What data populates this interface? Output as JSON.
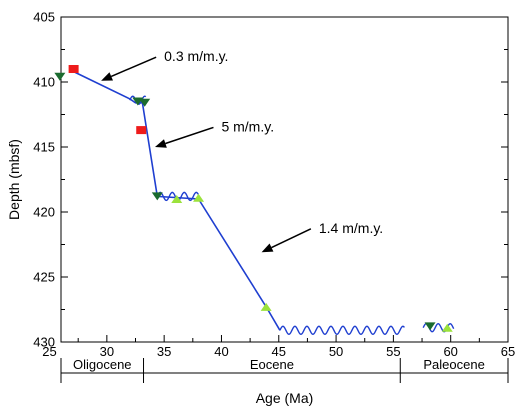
{
  "chart_data": {
    "type": "scatter",
    "xlabel": "Age (Ma)",
    "ylabel": "Depth (mbsf)",
    "xlim": [
      26,
      65
    ],
    "ylim": [
      405,
      430
    ],
    "y_inverted": true,
    "x_ticks": [
      25,
      30,
      35,
      40,
      45,
      50,
      55,
      60,
      65
    ],
    "y_ticks": [
      405,
      410,
      415,
      420,
      425,
      430
    ],
    "grid": false,
    "epochs": [
      {
        "name": "Oligocene",
        "start": 26,
        "end": 33.2
      },
      {
        "name": "Eocene",
        "start": 33.2,
        "end": 55.6
      },
      {
        "name": "Paleocene",
        "start": 55.6,
        "end": 65
      }
    ],
    "age_model_line": {
      "color": "#1f3fd0",
      "points": [
        [
          27.1,
          409.2
        ],
        [
          32,
          411.3
        ],
        [
          32.5,
          411.6
        ],
        [
          33.1,
          411.6
        ],
        [
          34.4,
          418.8
        ],
        [
          38,
          419.0
        ],
        [
          43.9,
          427.3
        ],
        [
          45.1,
          429.1
        ]
      ]
    },
    "hiatus_segments": [
      {
        "from": 32.0,
        "to": 33.4,
        "depth": 411.4
      },
      {
        "from": 34.4,
        "to": 38.0,
        "depth": 418.8
      },
      {
        "from": 45.1,
        "to": 56.0,
        "depth": 429.1
      },
      {
        "from": 57.6,
        "to": 60.3,
        "depth": 428.9
      }
    ],
    "series": [
      {
        "marker": "square",
        "color": "#ee1b1b",
        "points": [
          [
            27.1,
            409.0
          ],
          [
            33.0,
            413.7
          ]
        ]
      },
      {
        "marker": "triangle-down",
        "color": "#1b6b2f",
        "points": [
          [
            25.9,
            409.6
          ],
          [
            32.7,
            411.5
          ],
          [
            33.3,
            411.6
          ],
          [
            34.4,
            418.8
          ],
          [
            58.2,
            428.8
          ]
        ]
      },
      {
        "marker": "triangle-up",
        "color": "#9be23c",
        "points": [
          [
            36.1,
            419.0
          ],
          [
            38.0,
            418.9
          ],
          [
            43.9,
            427.3
          ],
          [
            59.7,
            428.9
          ]
        ]
      }
    ],
    "annotations": [
      {
        "text": "0.3 m/m.y.",
        "text_x": 35,
        "text_y": 408.4,
        "arrow_to": [
          29.5,
          409.9
        ]
      },
      {
        "text": "5 m/m.y.",
        "text_x": 40,
        "text_y": 413.8,
        "arrow_to": [
          34.2,
          415.0
        ]
      },
      {
        "text": "1.4 m/m.y.",
        "text_x": 48.5,
        "text_y": 421.6,
        "arrow_to": [
          43.5,
          423.1
        ]
      }
    ]
  }
}
